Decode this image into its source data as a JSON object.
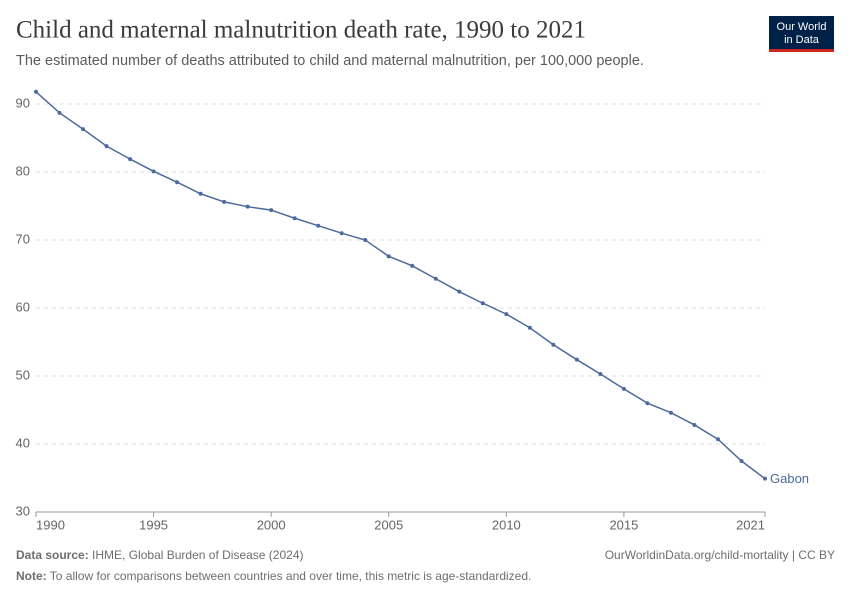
{
  "chart_data": {
    "type": "line",
    "title": "Child and maternal malnutrition death rate, 1990 to 2021",
    "subtitle": "The estimated number of deaths attributed to child and maternal malnutrition, per 100,000 people.",
    "logo": [
      "Our World",
      "in Data"
    ],
    "x": [
      1990,
      1991,
      1992,
      1993,
      1994,
      1995,
      1996,
      1997,
      1998,
      1999,
      2000,
      2001,
      2002,
      2003,
      2004,
      2005,
      2006,
      2007,
      2008,
      2009,
      2010,
      2011,
      2012,
      2013,
      2014,
      2015,
      2016,
      2017,
      2018,
      2019,
      2020,
      2021
    ],
    "series": [
      {
        "name": "Gabon",
        "color": "#4c6a9c",
        "values": [
          91.8,
          88.7,
          86.3,
          83.8,
          81.9,
          80.1,
          78.5,
          76.8,
          75.6,
          74.9,
          74.4,
          73.2,
          72.1,
          71.0,
          70.0,
          67.6,
          66.2,
          64.3,
          62.4,
          60.7,
          59.1,
          57.1,
          54.6,
          52.4,
          50.3,
          48.1,
          46.0,
          44.6,
          42.8,
          40.7,
          37.5,
          34.9
        ]
      }
    ],
    "xlim": [
      1990,
      2021
    ],
    "xticks": [
      1990,
      1995,
      2000,
      2005,
      2010,
      2015,
      2021
    ],
    "ylim": [
      30,
      92
    ],
    "yticks": [
      30,
      40,
      50,
      60,
      70,
      80,
      90
    ],
    "grid": true,
    "source_label": "Data source:",
    "source": "IHME, Global Burden of Disease (2024)",
    "url": "OurWorldinData.org/child-mortality | CC BY",
    "note_label": "Note:",
    "note": "To allow for comparisons between countries and over time, this metric is age-standardized."
  }
}
